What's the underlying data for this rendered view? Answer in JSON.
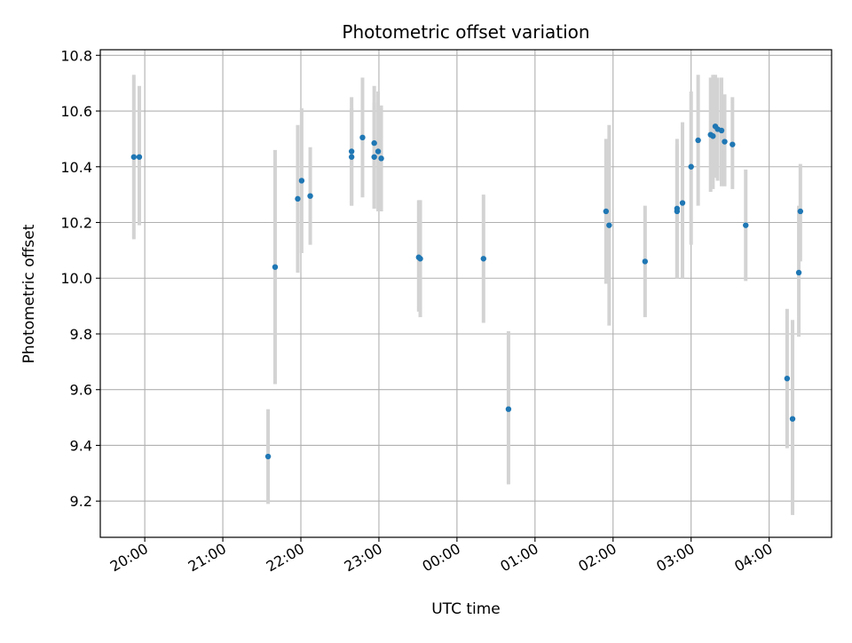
{
  "chart_data": {
    "type": "scatter",
    "title": "Photometric offset variation",
    "xlabel": "UTC time",
    "ylabel": "Photometric offset",
    "grid": true,
    "x_unit": "UTC time (hours; values after midnight continue past 24)",
    "xlim": [
      19.43,
      28.8
    ],
    "ylim": [
      9.07,
      10.82
    ],
    "x_ticks": [
      {
        "value": 20,
        "label": "20:00"
      },
      {
        "value": 21,
        "label": "21:00"
      },
      {
        "value": 22,
        "label": "22:00"
      },
      {
        "value": 23,
        "label": "23:00"
      },
      {
        "value": 24,
        "label": "00:00"
      },
      {
        "value": 25,
        "label": "01:00"
      },
      {
        "value": 26,
        "label": "02:00"
      },
      {
        "value": 27,
        "label": "03:00"
      },
      {
        "value": 28,
        "label": "04:00"
      }
    ],
    "y_ticks": [
      {
        "value": 9.2,
        "label": "9.2"
      },
      {
        "value": 9.4,
        "label": "9.4"
      },
      {
        "value": 9.6,
        "label": "9.6"
      },
      {
        "value": 9.8,
        "label": "9.8"
      },
      {
        "value": 10.0,
        "label": "10.0"
      },
      {
        "value": 10.2,
        "label": "10.2"
      },
      {
        "value": 10.4,
        "label": "10.4"
      },
      {
        "value": 10.6,
        "label": "10.6"
      },
      {
        "value": 10.8,
        "label": "10.8"
      }
    ],
    "colors": {
      "point": "#1f77b4",
      "error_bar": "#d3d3d3",
      "grid": "#b0b0b0"
    },
    "points": [
      {
        "x": 19.86,
        "y": 10.435,
        "lo": 10.14,
        "hi": 10.73
      },
      {
        "x": 19.93,
        "y": 10.435,
        "lo": 10.19,
        "hi": 10.69
      },
      {
        "x": 21.58,
        "y": 9.36,
        "lo": 9.19,
        "hi": 9.53
      },
      {
        "x": 21.67,
        "y": 10.04,
        "lo": 9.62,
        "hi": 10.46
      },
      {
        "x": 21.96,
        "y": 10.285,
        "lo": 10.02,
        "hi": 10.55
      },
      {
        "x": 22.01,
        "y": 10.35,
        "lo": 10.09,
        "hi": 10.61
      },
      {
        "x": 22.12,
        "y": 10.295,
        "lo": 10.12,
        "hi": 10.47
      },
      {
        "x": 22.65,
        "y": 10.455,
        "lo": 10.26,
        "hi": 10.65
      },
      {
        "x": 22.65,
        "y": 10.435,
        "lo": 10.26,
        "hi": 10.61
      },
      {
        "x": 22.79,
        "y": 10.505,
        "lo": 10.29,
        "hi": 10.72
      },
      {
        "x": 22.94,
        "y": 10.485,
        "lo": 10.25,
        "hi": 10.69
      },
      {
        "x": 22.94,
        "y": 10.435,
        "lo": 10.25,
        "hi": 10.63
      },
      {
        "x": 22.99,
        "y": 10.455,
        "lo": 10.24,
        "hi": 10.67
      },
      {
        "x": 23.03,
        "y": 10.43,
        "lo": 10.24,
        "hi": 10.62
      },
      {
        "x": 23.51,
        "y": 10.075,
        "lo": 9.88,
        "hi": 10.28
      },
      {
        "x": 23.53,
        "y": 10.07,
        "lo": 9.86,
        "hi": 10.28
      },
      {
        "x": 24.34,
        "y": 10.07,
        "lo": 9.84,
        "hi": 10.3
      },
      {
        "x": 24.66,
        "y": 9.53,
        "lo": 9.26,
        "hi": 9.81
      },
      {
        "x": 25.91,
        "y": 10.24,
        "lo": 9.98,
        "hi": 10.5
      },
      {
        "x": 25.95,
        "y": 10.19,
        "lo": 9.83,
        "hi": 10.55
      },
      {
        "x": 26.41,
        "y": 10.06,
        "lo": 9.86,
        "hi": 10.26
      },
      {
        "x": 26.82,
        "y": 10.25,
        "lo": 10.0,
        "hi": 10.5
      },
      {
        "x": 26.82,
        "y": 10.24,
        "lo": 10.0,
        "hi": 10.48
      },
      {
        "x": 26.89,
        "y": 10.27,
        "lo": 10.0,
        "hi": 10.56
      },
      {
        "x": 27.0,
        "y": 10.4,
        "lo": 10.12,
        "hi": 10.67
      },
      {
        "x": 27.09,
        "y": 10.495,
        "lo": 10.26,
        "hi": 10.73
      },
      {
        "x": 27.25,
        "y": 10.515,
        "lo": 10.31,
        "hi": 10.72
      },
      {
        "x": 27.28,
        "y": 10.51,
        "lo": 10.32,
        "hi": 10.73
      },
      {
        "x": 27.31,
        "y": 10.545,
        "lo": 10.36,
        "hi": 10.73
      },
      {
        "x": 27.34,
        "y": 10.535,
        "lo": 10.35,
        "hi": 10.72
      },
      {
        "x": 27.39,
        "y": 10.53,
        "lo": 10.33,
        "hi": 10.72
      },
      {
        "x": 27.43,
        "y": 10.49,
        "lo": 10.33,
        "hi": 10.66
      },
      {
        "x": 27.53,
        "y": 10.48,
        "lo": 10.32,
        "hi": 10.65
      },
      {
        "x": 27.7,
        "y": 10.19,
        "lo": 9.99,
        "hi": 10.39
      },
      {
        "x": 28.23,
        "y": 9.64,
        "lo": 9.39,
        "hi": 9.89
      },
      {
        "x": 28.3,
        "y": 9.495,
        "lo": 9.15,
        "hi": 9.85
      },
      {
        "x": 28.38,
        "y": 10.02,
        "lo": 9.79,
        "hi": 10.26
      },
      {
        "x": 28.4,
        "y": 10.24,
        "lo": 10.06,
        "hi": 10.41
      }
    ]
  }
}
